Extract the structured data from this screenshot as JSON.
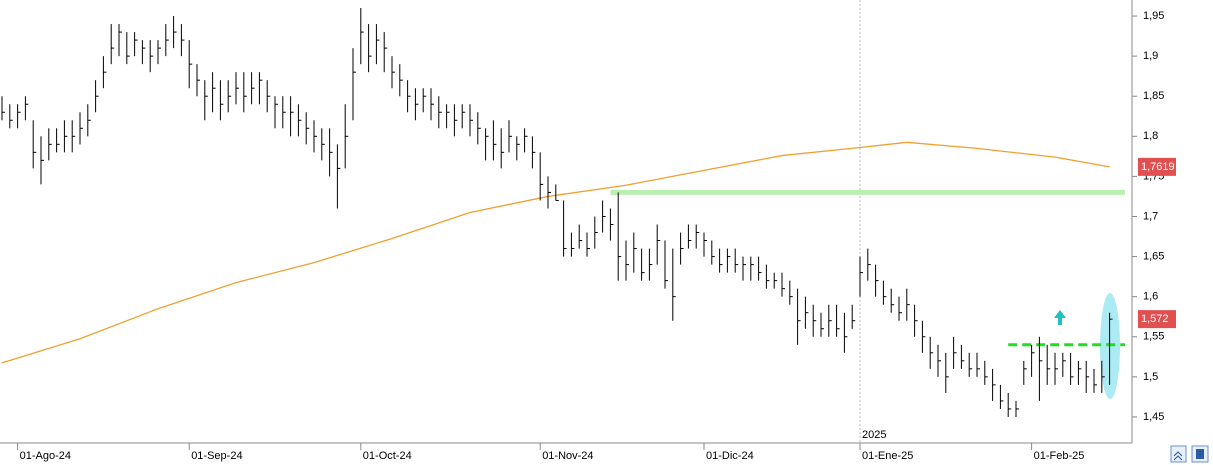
{
  "chart_data": {
    "type": "ohlc",
    "categories": [
      null,
      null,
      "01-Ago-24",
      null,
      null,
      null,
      null,
      null,
      null,
      null,
      null,
      null,
      null,
      null,
      null,
      null,
      null,
      null,
      null,
      null,
      null,
      null,
      null,
      null,
      "01-Sep-24",
      null,
      null,
      null,
      null,
      null,
      null,
      null,
      null,
      null,
      null,
      null,
      null,
      null,
      null,
      null,
      null,
      null,
      null,
      null,
      null,
      null,
      "01-Oct-24",
      null,
      null,
      null,
      null,
      null,
      null,
      null,
      null,
      null,
      null,
      null,
      null,
      null,
      null,
      null,
      null,
      null,
      null,
      null,
      null,
      null,
      null,
      "01-Nov-24",
      null,
      null,
      null,
      null,
      null,
      null,
      null,
      null,
      null,
      null,
      null,
      null,
      null,
      null,
      null,
      null,
      null,
      null,
      null,
      null,
      "01-Dic-24",
      null,
      null,
      null,
      null,
      null,
      null,
      null,
      null,
      null,
      null,
      null,
      null,
      null,
      null,
      null,
      null,
      null,
      null,
      null,
      "01-Ene-25",
      null,
      null,
      null,
      null,
      null,
      null,
      null,
      null,
      null,
      null,
      null,
      null,
      null,
      null,
      null,
      null,
      null,
      null,
      null,
      null,
      null,
      "01-Feb-25",
      null,
      null,
      null,
      null,
      null,
      null,
      null,
      null,
      null,
      null
    ],
    "high": [
      1.85,
      1.84,
      1.84,
      1.85,
      1.82,
      1.8,
      1.81,
      1.81,
      1.82,
      1.82,
      1.83,
      1.84,
      1.87,
      1.9,
      1.94,
      1.94,
      1.93,
      1.93,
      1.92,
      1.92,
      1.92,
      1.94,
      1.95,
      1.94,
      1.92,
      1.89,
      1.87,
      1.88,
      1.87,
      1.87,
      1.88,
      1.88,
      1.88,
      1.88,
      1.87,
      1.85,
      1.85,
      1.85,
      1.84,
      1.83,
      1.82,
      1.81,
      1.81,
      1.79,
      1.84,
      1.91,
      1.96,
      1.94,
      1.94,
      1.93,
      1.9,
      1.89,
      1.87,
      1.86,
      1.86,
      1.86,
      1.85,
      1.84,
      1.84,
      1.84,
      1.84,
      1.83,
      1.81,
      1.82,
      1.81,
      1.82,
      1.8,
      1.81,
      1.8,
      1.78,
      1.75,
      1.74,
      1.72,
      1.68,
      1.69,
      1.68,
      1.7,
      1.72,
      1.71,
      1.73,
      1.67,
      1.68,
      1.66,
      1.66,
      1.69,
      1.67,
      1.66,
      1.68,
      1.69,
      1.69,
      1.68,
      1.67,
      1.66,
      1.66,
      1.66,
      1.65,
      1.65,
      1.65,
      1.64,
      1.63,
      1.63,
      1.62,
      1.61,
      1.6,
      1.59,
      1.58,
      1.59,
      1.59,
      1.58,
      1.59,
      1.65,
      1.66,
      1.64,
      1.62,
      1.61,
      1.6,
      1.61,
      1.59,
      1.57,
      1.55,
      1.54,
      1.53,
      1.55,
      1.54,
      1.53,
      1.53,
      1.52,
      1.51,
      1.49,
      1.48,
      1.47,
      1.52,
      1.54,
      1.55,
      1.54,
      1.53,
      1.53,
      1.53,
      1.52,
      1.52,
      1.51,
      1.52,
      1.58
    ],
    "low": [
      1.82,
      1.81,
      1.81,
      1.82,
      1.76,
      1.74,
      1.77,
      1.78,
      1.78,
      1.78,
      1.79,
      1.8,
      1.83,
      1.86,
      1.89,
      1.9,
      1.89,
      1.9,
      1.89,
      1.88,
      1.89,
      1.9,
      1.91,
      1.9,
      1.86,
      1.85,
      1.82,
      1.83,
      1.82,
      1.83,
      1.84,
      1.83,
      1.84,
      1.84,
      1.83,
      1.81,
      1.81,
      1.8,
      1.8,
      1.79,
      1.78,
      1.77,
      1.75,
      1.71,
      1.76,
      1.82,
      1.89,
      1.88,
      1.89,
      1.88,
      1.86,
      1.85,
      1.83,
      1.82,
      1.83,
      1.82,
      1.81,
      1.81,
      1.8,
      1.81,
      1.8,
      1.79,
      1.77,
      1.77,
      1.76,
      1.78,
      1.77,
      1.78,
      1.76,
      1.72,
      1.71,
      1.72,
      1.65,
      1.65,
      1.66,
      1.65,
      1.66,
      1.68,
      1.67,
      1.62,
      1.62,
      1.63,
      1.62,
      1.62,
      1.64,
      1.61,
      1.57,
      1.64,
      1.66,
      1.66,
      1.65,
      1.64,
      1.63,
      1.63,
      1.63,
      1.62,
      1.62,
      1.62,
      1.61,
      1.61,
      1.6,
      1.59,
      1.54,
      1.56,
      1.55,
      1.55,
      1.55,
      1.55,
      1.53,
      1.56,
      1.6,
      1.62,
      1.6,
      1.59,
      1.58,
      1.57,
      1.57,
      1.55,
      1.53,
      1.51,
      1.5,
      1.48,
      1.51,
      1.51,
      1.5,
      1.5,
      1.49,
      1.47,
      1.46,
      1.45,
      1.45,
      1.49,
      1.5,
      1.47,
      1.49,
      1.49,
      1.5,
      1.49,
      1.49,
      1.48,
      1.48,
      1.48,
      1.49
    ],
    "close": [
      1.83,
      1.82,
      1.83,
      1.84,
      1.78,
      1.77,
      1.79,
      1.79,
      1.8,
      1.8,
      1.81,
      1.82,
      1.85,
      1.88,
      1.91,
      1.93,
      1.9,
      1.92,
      1.91,
      1.9,
      1.91,
      1.92,
      1.93,
      1.92,
      1.89,
      1.87,
      1.85,
      1.86,
      1.84,
      1.85,
      1.86,
      1.85,
      1.86,
      1.87,
      1.85,
      1.84,
      1.83,
      1.83,
      1.82,
      1.81,
      1.8,
      1.79,
      1.78,
      1.76,
      1.8,
      1.88,
      1.93,
      1.9,
      1.92,
      1.91,
      1.88,
      1.87,
      1.85,
      1.84,
      1.85,
      1.84,
      1.83,
      1.83,
      1.82,
      1.83,
      1.82,
      1.81,
      1.8,
      1.79,
      1.78,
      1.8,
      1.79,
      1.8,
      1.78,
      1.74,
      1.73,
      1.72,
      1.66,
      1.66,
      1.67,
      1.66,
      1.68,
      1.7,
      1.69,
      1.65,
      1.64,
      1.66,
      1.63,
      1.64,
      1.67,
      1.62,
      1.6,
      1.66,
      1.67,
      1.68,
      1.67,
      1.65,
      1.64,
      1.65,
      1.64,
      1.64,
      1.64,
      1.63,
      1.62,
      1.62,
      1.61,
      1.6,
      1.57,
      1.58,
      1.57,
      1.56,
      1.57,
      1.56,
      1.55,
      1.57,
      1.63,
      1.64,
      1.62,
      1.6,
      1.59,
      1.58,
      1.59,
      1.57,
      1.55,
      1.53,
      1.52,
      1.5,
      1.53,
      1.52,
      1.51,
      1.51,
      1.5,
      1.49,
      1.47,
      1.46,
      1.46,
      1.51,
      1.53,
      1.52,
      1.51,
      1.51,
      1.52,
      1.5,
      1.51,
      1.5,
      1.49,
      1.5,
      1.572
    ],
    "bar_color": "#000000",
    "moving_average": {
      "color": "#f0a030",
      "x": [
        0,
        10,
        20,
        30,
        40,
        50,
        60,
        70,
        80,
        90,
        100,
        110,
        116,
        125,
        135,
        142
      ],
      "values": [
        1.5175,
        1.5475,
        1.585,
        1.6175,
        1.6425,
        1.6725,
        1.705,
        1.725,
        1.739,
        1.7575,
        1.776,
        1.786,
        1.7925,
        1.785,
        1.774,
        1.7619
      ]
    },
    "levels": [
      {
        "value": 1.73,
        "from": 78,
        "color": "#b8f0b0",
        "dashed": false
      },
      {
        "value": 1.54,
        "from": 129,
        "color": "#22dd22",
        "dashed": true
      }
    ],
    "price_labels": [
      {
        "value": 1.7619,
        "label": "1,7619",
        "color": "#e05050"
      },
      {
        "value": 1.572,
        "label": "1,572",
        "color": "#e05050"
      }
    ],
    "annotations": [
      {
        "text": "2025",
        "at": 110
      }
    ],
    "ylim": [
      1.42,
      1.97
    ],
    "yticks": [
      {
        "value": 1.45,
        "label": "1,45"
      },
      {
        "value": 1.5,
        "label": "1,5"
      },
      {
        "value": 1.55,
        "label": "1,55"
      },
      {
        "value": 1.6,
        "label": "1,6"
      },
      {
        "value": 1.65,
        "label": "1,65"
      },
      {
        "value": 1.7,
        "label": "1,7"
      },
      {
        "value": 1.75,
        "label": "1,75"
      },
      {
        "value": 1.8,
        "label": "1,8"
      },
      {
        "value": 1.85,
        "label": "1,85"
      },
      {
        "value": 1.9,
        "label": "1,9"
      },
      {
        "value": 1.95,
        "label": "1,95"
      }
    ]
  }
}
